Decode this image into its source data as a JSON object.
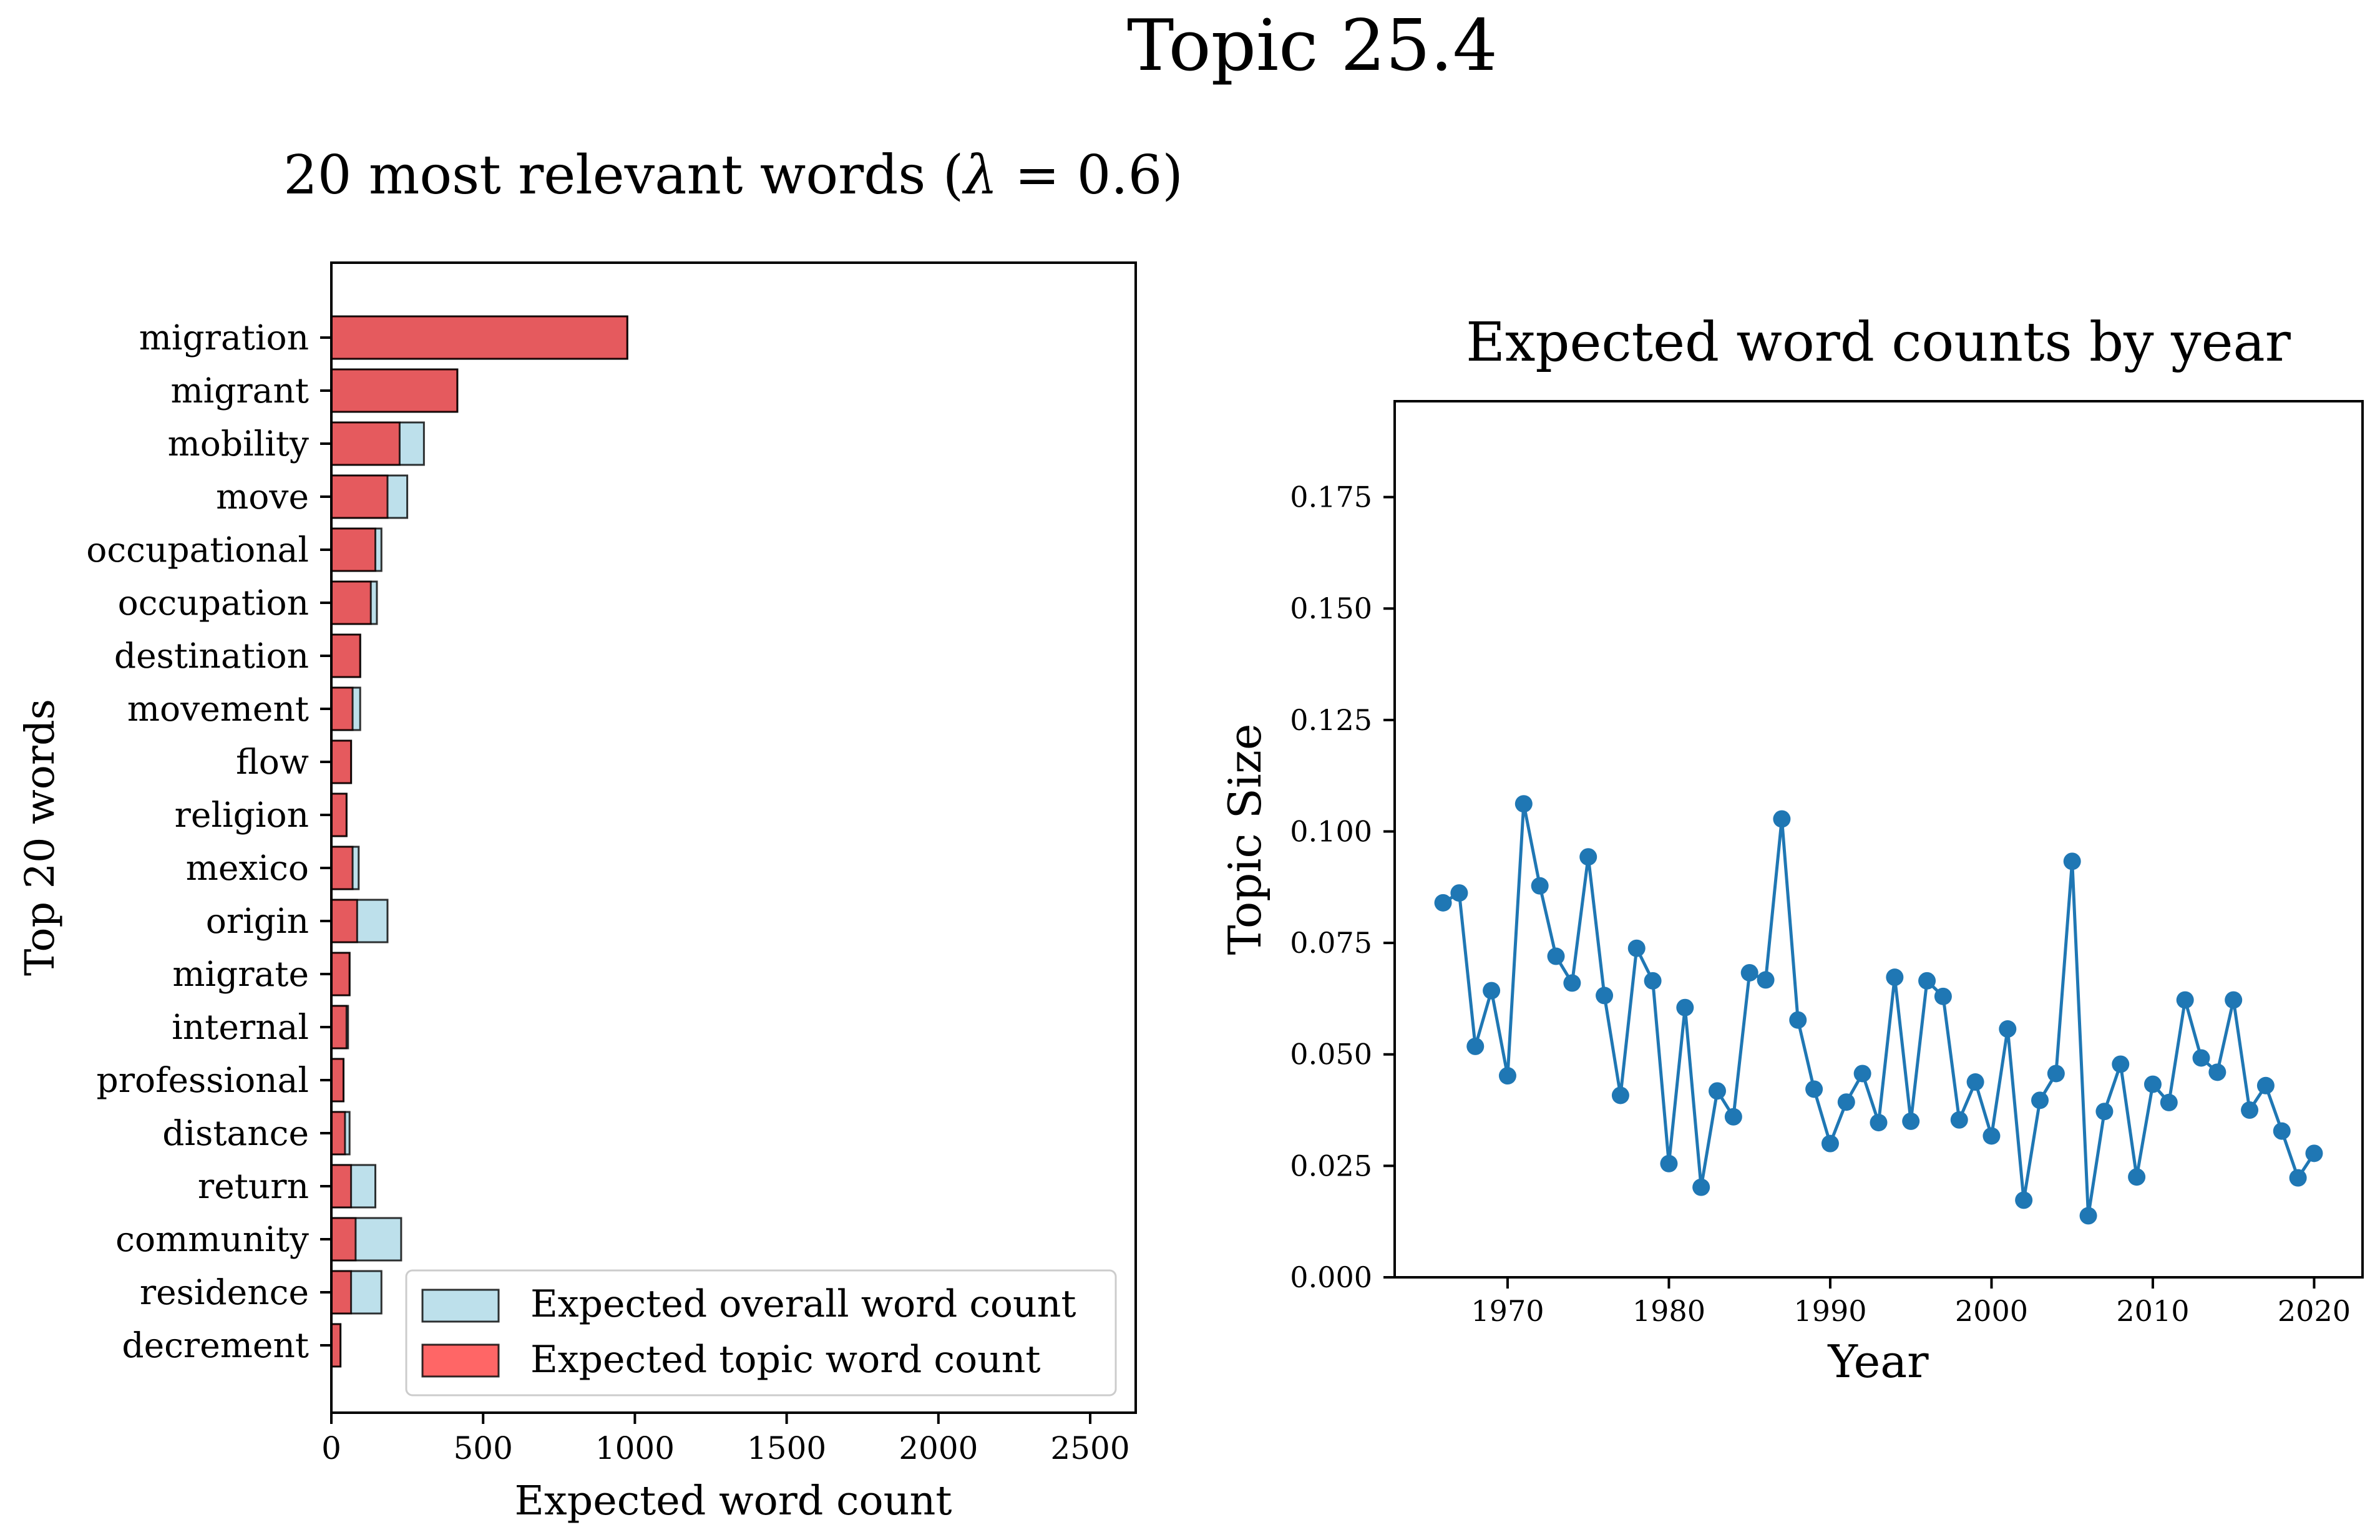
{
  "figure": {
    "title": "Topic 25.4"
  },
  "chart_data": [
    {
      "type": "bar",
      "orientation": "horizontal",
      "title": "20 most relevant words (λ = 0.6)",
      "title_prefix": "20 most relevant words (",
      "title_symbol": "λ",
      "title_suffix": " = 0.6)",
      "xlabel": "Expected word count",
      "ylabel": "Top 20 words",
      "xlim": [
        0,
        2650
      ],
      "xticks": [
        0,
        500,
        1000,
        1500,
        2000,
        2500
      ],
      "categories": [
        "migration",
        "migrant",
        "mobility",
        "move",
        "occupational",
        "occupation",
        "destination",
        "movement",
        "flow",
        "religion",
        "mexico",
        "origin",
        "migrate",
        "internal",
        "professional",
        "distance",
        "return",
        "community",
        "residence",
        "decrement"
      ],
      "series": [
        {
          "name": "Expected overall word count",
          "color": "#add8e6",
          "values": [
            975,
            415,
            305,
            250,
            165,
            150,
            95,
            95,
            65,
            50,
            90,
            185,
            60,
            55,
            40,
            60,
            145,
            230,
            165,
            30
          ]
        },
        {
          "name": "Expected topic word count",
          "color": "#ff0000",
          "values": [
            975,
            415,
            225,
            185,
            145,
            130,
            95,
            70,
            65,
            50,
            70,
            85,
            60,
            50,
            40,
            45,
            65,
            80,
            65,
            30
          ]
        }
      ],
      "legend": "lower-right",
      "grid": false
    },
    {
      "type": "line",
      "title": "Expected word counts by year",
      "xlabel": "Year",
      "ylabel": "Topic Size",
      "xlim": [
        1963,
        2023
      ],
      "ylim": [
        0,
        0.1965
      ],
      "xticks": [
        1970,
        1980,
        1990,
        2000,
        2010,
        2020
      ],
      "yticks": [
        "0.000",
        "0.025",
        "0.050",
        "0.075",
        "0.100",
        "0.125",
        "0.150",
        "0.175"
      ],
      "color": "#1f77b4",
      "x": [
        1966,
        1967,
        1968,
        1969,
        1970,
        1971,
        1972,
        1973,
        1974,
        1975,
        1976,
        1977,
        1978,
        1979,
        1980,
        1981,
        1982,
        1983,
        1984,
        1985,
        1986,
        1987,
        1988,
        1989,
        1990,
        1991,
        1992,
        1993,
        1994,
        1995,
        1996,
        1997,
        1998,
        1999,
        2000,
        2001,
        2002,
        2003,
        2004,
        2005,
        2006,
        2007,
        2008,
        2009,
        2010,
        2011,
        2012,
        2013,
        2014,
        2015,
        2016,
        2017,
        2018,
        2019,
        2020
      ],
      "y": [
        0.084,
        0.0862,
        0.0518,
        0.0643,
        0.0452,
        0.1062,
        0.0878,
        0.072,
        0.066,
        0.0943,
        0.0632,
        0.0408,
        0.0738,
        0.0665,
        0.0255,
        0.0605,
        0.0202,
        0.0418,
        0.036,
        0.0683,
        0.0667,
        0.1028,
        0.0577,
        0.0422,
        0.03,
        0.0393,
        0.0457,
        0.0347,
        0.0673,
        0.035,
        0.0665,
        0.063,
        0.0353,
        0.0438,
        0.0317,
        0.0557,
        0.0173,
        0.0397,
        0.0457,
        0.0933,
        0.0138,
        0.0372,
        0.0478,
        0.0225,
        0.0433,
        0.0392,
        0.0622,
        0.0492,
        0.046,
        0.0622,
        0.0375,
        0.043,
        0.0328,
        0.0223,
        0.0278
      ],
      "grid": false
    }
  ]
}
